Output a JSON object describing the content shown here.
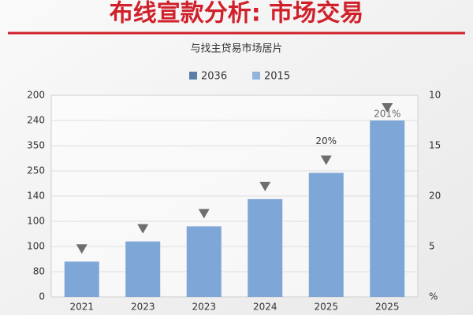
{
  "chart_data": {
    "type": "bar",
    "title": "布线宣款分析: 市场交易",
    "subtitle": "与找主贷易市场居片",
    "legend": [
      {
        "name": "2036",
        "color": "#5b7fa8"
      },
      {
        "name": "2015",
        "color": "#93b4dc"
      }
    ],
    "categories": [
      "2021",
      "2023",
      "2023",
      "2024",
      "2025",
      "2025"
    ],
    "values": [
      35,
      55,
      70,
      97,
      123,
      175
    ],
    "color": "#7ea6d6",
    "ylim": [
      0,
      200
    ],
    "y_axis_labels": [
      0,
      80,
      100,
      100,
      140,
      250,
      350,
      240,
      200
    ],
    "y2_axis_labels": [
      "10",
      "15",
      "20",
      "5",
      "%"
    ],
    "annotations": [
      "20%",
      "201%"
    ],
    "grid": true
  }
}
